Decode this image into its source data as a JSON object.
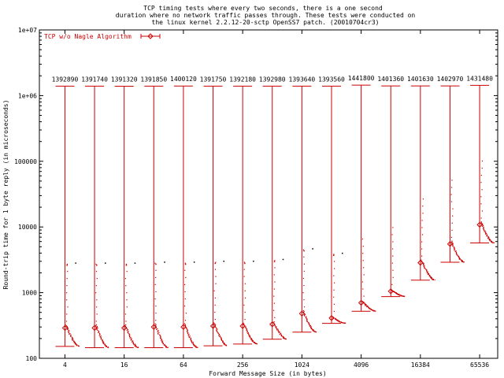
{
  "chart_data": {
    "type": "scatter",
    "title": [
      "TCP timing tests where every two seconds, there is a one second",
      "duration where no network traffic passes through.  These tests were conducted on",
      "the linux kernel 2.2.12-20-sctp OpenSS7 patch. (20010704cr3)"
    ],
    "xlabel": "Forward Message Size (in bytes)",
    "ylabel": "Round-trip time for 1 byte reply (in microseconds)",
    "x_scale": "log2",
    "y_scale": "log10",
    "xlim": [
      2.2,
      100000
    ],
    "ylim": [
      100,
      10000000
    ],
    "x_ticks": [
      {
        "value": 4,
        "label": "4"
      },
      {
        "value": 16,
        "label": "16"
      },
      {
        "value": 64,
        "label": "64"
      },
      {
        "value": 256,
        "label": "256"
      },
      {
        "value": 1024,
        "label": "1024"
      },
      {
        "value": 4096,
        "label": "4096"
      },
      {
        "value": 16384,
        "label": "16384"
      },
      {
        "value": 65536,
        "label": "65536"
      }
    ],
    "y_ticks": [
      {
        "value": 100,
        "label": "100"
      },
      {
        "value": 1000,
        "label": "1000"
      },
      {
        "value": 10000,
        "label": "10000"
      },
      {
        "value": 100000,
        "label": "100000"
      },
      {
        "value": 1000000,
        "label": "1e+06"
      },
      {
        "value": 10000000,
        "label": "1e+07"
      }
    ],
    "legend": {
      "label": "TCP w/o Nagle Algorithm",
      "position": "top-left"
    },
    "series_color": "#cc0000",
    "series": [
      {
        "x": 4,
        "min": 152,
        "max": 1392890,
        "mean": 290,
        "label": "1392890"
      },
      {
        "x": 8,
        "min": 145,
        "max": 1391740,
        "mean": 290,
        "label": "1391740"
      },
      {
        "x": 16,
        "min": 145,
        "max": 1391320,
        "mean": 290,
        "label": "1391320"
      },
      {
        "x": 32,
        "min": 145,
        "max": 1391850,
        "mean": 300,
        "label": "1391850"
      },
      {
        "x": 64,
        "min": 145,
        "max": 1400120,
        "mean": 300,
        "label": "1400120"
      },
      {
        "x": 128,
        "min": 155,
        "max": 1391750,
        "mean": 310,
        "label": "1391750"
      },
      {
        "x": 256,
        "min": 165,
        "max": 1392180,
        "mean": 310,
        "label": "1392180"
      },
      {
        "x": 512,
        "min": 195,
        "max": 1392980,
        "mean": 330,
        "label": "1392980"
      },
      {
        "x": 1024,
        "min": 250,
        "max": 1393640,
        "mean": 480,
        "label": "1393640"
      },
      {
        "x": 2048,
        "min": 340,
        "max": 1393560,
        "mean": 410,
        "label": "1393560"
      },
      {
        "x": 4096,
        "min": 520,
        "max": 1441800,
        "mean": 700,
        "label": "1441800"
      },
      {
        "x": 8192,
        "min": 870,
        "max": 1401360,
        "mean": 1050,
        "label": "1401360"
      },
      {
        "x": 16384,
        "min": 1550,
        "max": 1401630,
        "mean": 2850,
        "label": "1401630"
      },
      {
        "x": 32768,
        "min": 2900,
        "max": 1402970,
        "mean": 5500,
        "label": "1402970"
      },
      {
        "x": 65536,
        "min": 5700,
        "max": 1431480,
        "mean": 10800,
        "label": "1431480"
      }
    ]
  }
}
